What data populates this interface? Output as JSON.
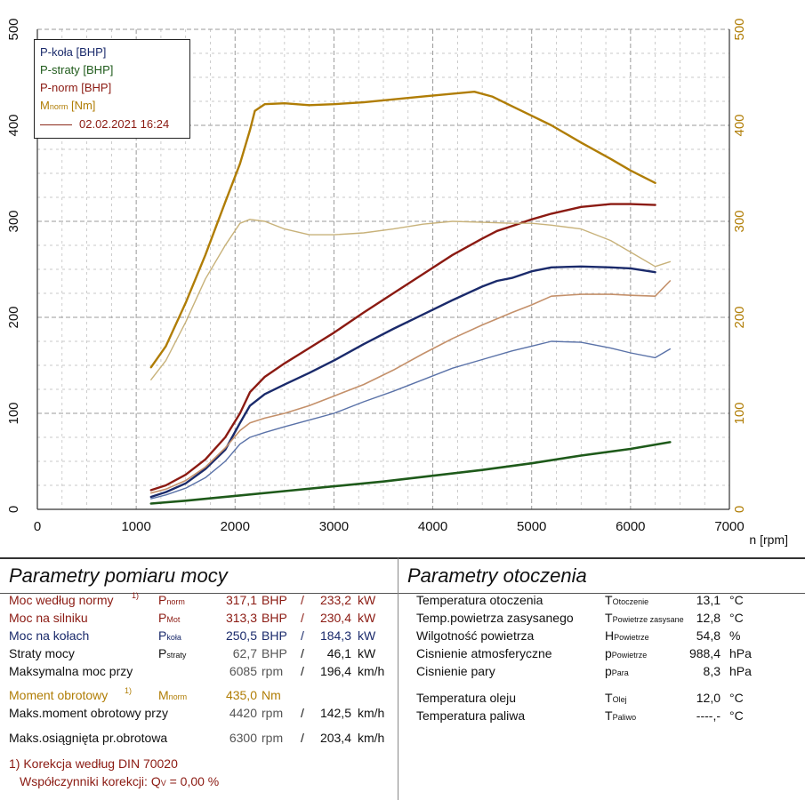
{
  "chart_data": {
    "type": "line",
    "xlabel": "n [rpm]",
    "x_ticks": [
      "0",
      "1000",
      "2000",
      "3000",
      "4000",
      "5000",
      "6000",
      "7000"
    ],
    "y_ticks_left": [
      "0",
      "100",
      "200",
      "300",
      "400",
      "500"
    ],
    "y_ticks_right": [
      "0",
      "100",
      "200",
      "300",
      "400",
      "500"
    ],
    "xlim": [
      0,
      7000
    ],
    "ylim": [
      0,
      500
    ],
    "grid": true,
    "legend_position": "top-left",
    "legend": [
      "P-koła [BHP]",
      "P-straty [BHP]",
      "P-norm [BHP]",
      "M_norm [Nm]"
    ],
    "legend_date": "02.02.2021 16:24",
    "series": [
      {
        "name": "P-koła [BHP]",
        "color": "#1a2a6b",
        "width": 2.4,
        "x": [
          1150,
          1300,
          1500,
          1700,
          1900,
          2050,
          2150,
          2300,
          2500,
          2750,
          3000,
          3300,
          3600,
          3900,
          4200,
          4500,
          4650,
          4800,
          5000,
          5200,
          5500,
          5800,
          6000,
          6250
        ],
        "y": [
          13,
          18,
          27,
          42,
          62,
          90,
          108,
          120,
          130,
          142,
          155,
          172,
          188,
          203,
          218,
          232,
          238,
          241,
          248,
          252,
          253,
          252,
          251,
          247
        ]
      },
      {
        "name": "P-straty [BHP]",
        "color": "#1e5a1a",
        "width": 2.6,
        "x": [
          1150,
          1500,
          2000,
          2500,
          3000,
          3500,
          4000,
          4500,
          5000,
          5500,
          6000,
          6400
        ],
        "y": [
          6,
          9,
          14,
          19,
          24,
          29,
          35,
          41,
          48,
          56,
          63,
          70
        ]
      },
      {
        "name": "P-norm [BHP]",
        "color": "#8b1a12",
        "width": 2.4,
        "x": [
          1150,
          1300,
          1500,
          1700,
          1900,
          2050,
          2150,
          2300,
          2500,
          2750,
          3000,
          3300,
          3600,
          3900,
          4200,
          4500,
          4650,
          4800,
          5000,
          5200,
          5500,
          5800,
          6000,
          6250
        ],
        "y": [
          20,
          25,
          36,
          52,
          75,
          100,
          122,
          138,
          152,
          168,
          184,
          205,
          225,
          245,
          265,
          282,
          290,
          295,
          302,
          308,
          315,
          318,
          318,
          317
        ]
      },
      {
        "name": "M_norm [Nm]",
        "color": "#b07d05",
        "width": 2.4,
        "x": [
          1150,
          1300,
          1500,
          1700,
          1900,
          2050,
          2150,
          2200,
          2300,
          2500,
          2750,
          3000,
          3300,
          3600,
          3900,
          4200,
          4420,
          4600,
          4800,
          5000,
          5200,
          5500,
          5800,
          6000,
          6250
        ],
        "y": [
          148,
          170,
          215,
          265,
          320,
          360,
          395,
          415,
          422,
          423,
          421,
          422,
          424,
          427,
          430,
          433,
          435,
          430,
          420,
          410,
          400,
          382,
          365,
          353,
          340
        ]
      },
      {
        "name": "",
        "color": "#c4906a",
        "width": 1.6,
        "x": [
          1150,
          1300,
          1500,
          1700,
          1900,
          2050,
          2150,
          2300,
          2500,
          2750,
          3000,
          3300,
          3600,
          3900,
          4200,
          4500,
          4800,
          5000,
          5200,
          5500,
          5800,
          6000,
          6250,
          6400
        ],
        "y": [
          17,
          21,
          30,
          44,
          64,
          82,
          90,
          95,
          100,
          108,
          118,
          130,
          145,
          162,
          178,
          192,
          205,
          213,
          222,
          224,
          224,
          223,
          222,
          238
        ]
      },
      {
        "name": "",
        "color": "#5a72a8",
        "width": 1.4,
        "x": [
          1150,
          1300,
          1500,
          1700,
          1900,
          2050,
          2150,
          2300,
          2500,
          2750,
          3000,
          3300,
          3600,
          3900,
          4200,
          4500,
          4800,
          5000,
          5200,
          5500,
          5800,
          6000,
          6250,
          6400
        ],
        "y": [
          11,
          15,
          22,
          33,
          50,
          68,
          75,
          80,
          86,
          93,
          100,
          112,
          123,
          135,
          147,
          156,
          165,
          170,
          175,
          174,
          168,
          163,
          158,
          167
        ]
      },
      {
        "name": "",
        "color": "#c8b27a",
        "width": 1.4,
        "x": [
          1150,
          1300,
          1500,
          1700,
          1900,
          2050,
          2150,
          2300,
          2500,
          2750,
          3000,
          3300,
          3600,
          3900,
          4200,
          4500,
          4800,
          5000,
          5200,
          5500,
          5800,
          6000,
          6250,
          6400
        ],
        "y": [
          135,
          155,
          195,
          240,
          275,
          298,
          302,
          300,
          292,
          286,
          286,
          288,
          292,
          297,
          300,
          299,
          298,
          298,
          296,
          292,
          280,
          268,
          253,
          258
        ]
      }
    ]
  },
  "left_panel": {
    "title": "Parametry pomiaru mocy",
    "rows": [
      {
        "label": "Moc według normy",
        "marker": "1)",
        "sym": "P",
        "sym_sub": "norm",
        "v1": "317,1",
        "u1": "BHP",
        "sep": "/",
        "v2": "233,2",
        "u2": "kW"
      },
      {
        "label": "Moc na silniku",
        "sym": "P",
        "sym_sub": "Mot",
        "v1": "313,3",
        "u1": "BHP",
        "sep": "/",
        "v2": "230,4",
        "u2": "kW"
      },
      {
        "label": "Moc na kołach",
        "sym": "P",
        "sym_sub": "koła",
        "v1": "250,5",
        "u1": "BHP",
        "sep": "/",
        "v2": "184,3",
        "u2": "kW"
      },
      {
        "label": "Straty mocy",
        "sym": "P",
        "sym_sub": "straty",
        "v1": "62,7",
        "u1": "BHP",
        "sep": "/",
        "v2": "46,1",
        "u2": "kW"
      },
      {
        "label": "Maksymalna moc przy",
        "v1": "6085",
        "u1": "rpm",
        "sep": "/",
        "v2": "196,4",
        "u2": "km/h"
      },
      {
        "label": "Moment obrotowy",
        "marker": "1)",
        "sym": "M",
        "sym_sub": "norm",
        "v1": "435,0",
        "u1": "Nm"
      },
      {
        "label": "Maks.moment obrotowy przy",
        "v1": "4420",
        "u1": "rpm",
        "sep": "/",
        "v2": "142,5",
        "u2": "km/h"
      },
      {
        "label": "Maks.osiągnięta pr.obrotowa",
        "v1": "6300",
        "u1": "rpm",
        "sep": "/",
        "v2": "203,4",
        "u2": "km/h"
      }
    ],
    "footnote1": "1) Korekcja według DIN 70020",
    "footnote2_label": "Współczynniki korekcji: Q",
    "footnote2_sub": "V",
    "footnote2_value": " =   0,00 %"
  },
  "right_panel": {
    "title": "Parametry otoczenia",
    "rows": [
      {
        "label": "Temperatura otoczenia",
        "sym": "T",
        "sym_sub": "Otoczenie",
        "value": "13,1",
        "unit": "°C"
      },
      {
        "label": "Temp.powietrza zasysanego",
        "sym": "T",
        "sym_sub": "Powietrze zasysane",
        "value": "12,8",
        "unit": "°C"
      },
      {
        "label": "Wilgotność powietrza",
        "sym": "H",
        "sym_sub": "Powietrze",
        "value": "54,8",
        "unit": "%"
      },
      {
        "label": "Cisnienie atmosferyczne",
        "sym": "p",
        "sym_sub": "Powietrze",
        "value": "988,4",
        "unit": "hPa"
      },
      {
        "label": "Cisnienie pary",
        "sym": "p",
        "sym_sub": "Para",
        "value": "8,3",
        "unit": "hPa"
      },
      {
        "label": "Temperatura oleju",
        "sym": "T",
        "sym_sub": "Olej",
        "value": "12,0",
        "unit": "°C"
      },
      {
        "label": "Temperatura paliwa",
        "sym": "T",
        "sym_sub": "Paliwo",
        "value": "----,-",
        "unit": "°C"
      }
    ]
  }
}
